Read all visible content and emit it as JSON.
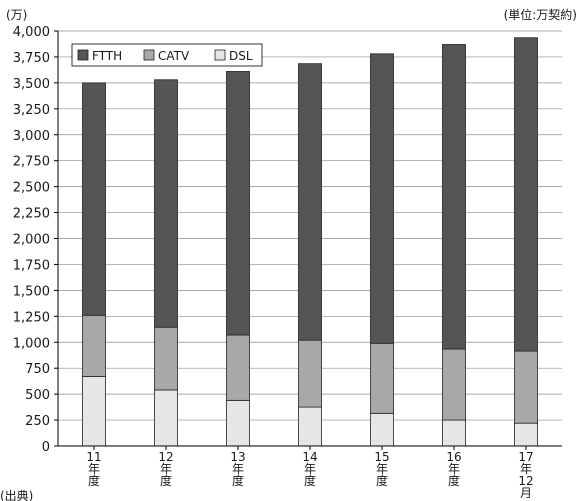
{
  "chart_data": {
    "type": "bar",
    "stacked": true,
    "y_unit_label": "(万)",
    "unit_note": "(単位:万契約)",
    "source_label": "(出典)",
    "categories": [
      "11年度",
      "12年度",
      "13年度",
      "14年度",
      "15年度",
      "16年度",
      "17年12月"
    ],
    "category_tick_lines": [
      [
        "11",
        "年",
        "度"
      ],
      [
        "12",
        "年",
        "度"
      ],
      [
        "13",
        "年",
        "度"
      ],
      [
        "14",
        "年",
        "度"
      ],
      [
        "15",
        "年",
        "度"
      ],
      [
        "16",
        "年",
        "度"
      ],
      [
        "17",
        "年",
        "12",
        "月"
      ]
    ],
    "series": [
      {
        "name": "DSL",
        "color": "#e6e6e6",
        "values": [
          670,
          540,
          440,
          375,
          315,
          250,
          220
        ]
      },
      {
        "name": "CATV",
        "color": "#a8a8a8",
        "values": [
          590,
          605,
          630,
          645,
          675,
          685,
          695
        ]
      },
      {
        "name": "FTTH",
        "color": "#555555",
        "values": [
          2240,
          2385,
          2540,
          2665,
          2790,
          2935,
          3020
        ]
      }
    ],
    "legend_order": [
      "FTTH",
      "CATV",
      "DSL"
    ],
    "legend_position": "top-left",
    "ylim": [
      0,
      4000
    ],
    "y_ticks": [
      0,
      250,
      500,
      750,
      1000,
      1250,
      1500,
      1750,
      2000,
      2250,
      2500,
      2750,
      3000,
      3250,
      3500,
      3750,
      4000
    ],
    "y_tick_labels": [
      "0",
      "250",
      "500",
      "750",
      "1,000",
      "1,250",
      "1,500",
      "1,750",
      "2,000",
      "2,250",
      "2,500",
      "2,750",
      "3,000",
      "3,250",
      "3,500",
      "3,750",
      "4,000"
    ],
    "grid": "horizontal"
  }
}
